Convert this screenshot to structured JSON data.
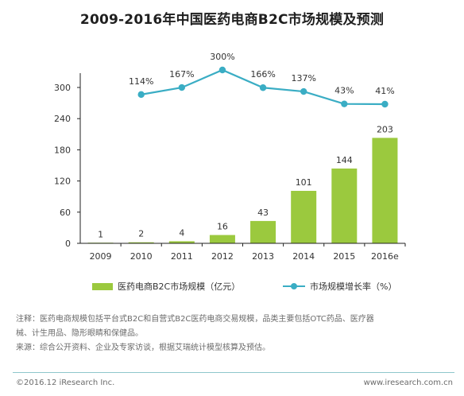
{
  "title": "2009-2016年中国医药电商B2C市场规模及预测",
  "colors": {
    "bar": "#9bc93e",
    "line": "#3aadc4",
    "axis": "#222222",
    "text": "#333333"
  },
  "chart_data": {
    "type": "bar+line",
    "categories": [
      "2009",
      "2010",
      "2011",
      "2012",
      "2013",
      "2014",
      "2015",
      "2016e"
    ],
    "series": [
      {
        "name": "医药电商B2C市场规模（亿元）",
        "type": "bar",
        "values": [
          1,
          2,
          4,
          16,
          43,
          101,
          144,
          203
        ],
        "labels": [
          "1",
          "2",
          "4",
          "16",
          "43",
          "101",
          "144",
          "203"
        ]
      },
      {
        "name": "市场规模增长率（%）",
        "type": "line",
        "values": [
          null,
          114,
          167,
          300,
          166,
          137,
          43,
          41
        ],
        "labels": [
          "",
          "114%",
          "167%",
          "300%",
          "166%",
          "137%",
          "43%",
          "41%"
        ]
      }
    ],
    "y_ticks": [
      "0",
      "60",
      "120",
      "180",
      "240",
      "300"
    ],
    "ylim": [
      0,
      300
    ],
    "legend_position": "bottom"
  },
  "legend": {
    "bar_label": "医药电商B2C市场规模（亿元）",
    "line_label": "市场规模增长率（%）"
  },
  "notes": {
    "line1": "注释：医药电商规模包括平台式B2C和自营式B2C医药电商交易规模，品类主要包括OTC药品、医疗器",
    "line2": "械、计生用品、隐形眼睛和保健品。",
    "line3": "来源：综合公开资料、企业及专家访谈，根据艾瑞统计模型核算及预估。"
  },
  "footer": {
    "copyright": "©2016.12 iResearch Inc.",
    "url": "www.iresearch.com.cn"
  }
}
